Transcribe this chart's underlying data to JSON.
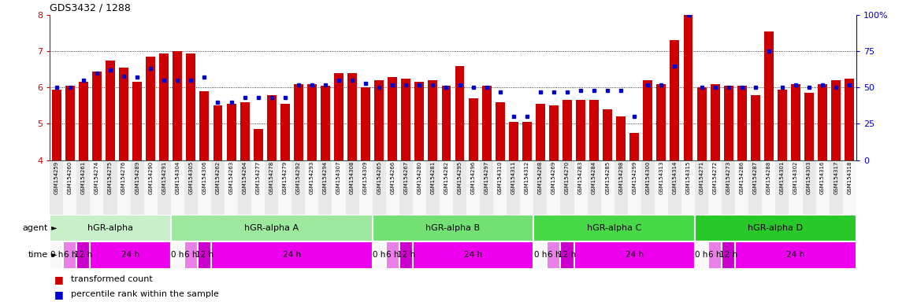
{
  "title": "GDS3432 / 1288",
  "samples": [
    "GSM154259",
    "GSM154260",
    "GSM154261",
    "GSM154274",
    "GSM154275",
    "GSM154276",
    "GSM154289",
    "GSM154290",
    "GSM154291",
    "GSM154304",
    "GSM154305",
    "GSM154306",
    "GSM154262",
    "GSM154263",
    "GSM154264",
    "GSM154277",
    "GSM154278",
    "GSM154279",
    "GSM154292",
    "GSM154293",
    "GSM154294",
    "GSM154307",
    "GSM154308",
    "GSM154309",
    "GSM154265",
    "GSM154266",
    "GSM154267",
    "GSM154280",
    "GSM154281",
    "GSM154282",
    "GSM154295",
    "GSM154296",
    "GSM154297",
    "GSM154310",
    "GSM154311",
    "GSM154312",
    "GSM154268",
    "GSM154269",
    "GSM154270",
    "GSM154283",
    "GSM154284",
    "GSM154285",
    "GSM154298",
    "GSM154299",
    "GSM154300",
    "GSM154313",
    "GSM154314",
    "GSM154315",
    "GSM154271",
    "GSM154272",
    "GSM154273",
    "GSM154286",
    "GSM154287",
    "GSM154288",
    "GSM154301",
    "GSM154302",
    "GSM154303",
    "GSM154316",
    "GSM154317",
    "GSM154318"
  ],
  "bar_values": [
    5.95,
    6.05,
    6.15,
    6.45,
    6.75,
    6.55,
    6.15,
    6.85,
    6.95,
    7.0,
    6.95,
    5.9,
    5.5,
    5.55,
    5.6,
    4.85,
    5.8,
    5.55,
    6.1,
    6.1,
    6.05,
    6.4,
    6.4,
    6.0,
    6.2,
    6.3,
    6.25,
    6.15,
    6.2,
    6.05,
    6.6,
    5.7,
    6.05,
    5.6,
    5.05,
    5.05,
    5.55,
    5.5,
    5.65,
    5.65,
    5.65,
    5.4,
    5.2,
    4.75,
    6.2,
    6.1,
    7.3,
    8.0,
    6.0,
    6.1,
    6.05,
    6.05,
    5.8,
    7.55,
    5.95,
    6.1,
    5.85,
    6.1,
    6.2,
    6.25
  ],
  "percentile_values": [
    50,
    50,
    55,
    60,
    62,
    58,
    57,
    63,
    55,
    55,
    55,
    57,
    40,
    40,
    43,
    43,
    43,
    43,
    52,
    52,
    52,
    55,
    55,
    53,
    50,
    52,
    52,
    52,
    52,
    50,
    52,
    50,
    50,
    47,
    30,
    30,
    47,
    47,
    47,
    48,
    48,
    48,
    48,
    30,
    52,
    52,
    65,
    100,
    50,
    50,
    50,
    50,
    50,
    75,
    50,
    52,
    50,
    52,
    50,
    52
  ],
  "agents": [
    "hGR-alpha",
    "hGR-alpha A",
    "hGR-alpha B",
    "hGR-alpha C",
    "hGR-alpha D"
  ],
  "agent_starts": [
    0,
    9,
    24,
    36,
    48
  ],
  "agent_ends": [
    9,
    24,
    36,
    48,
    60
  ],
  "agent_colors": [
    "#d8f5d8",
    "#c0f0c0",
    "#a8eba8",
    "#84e084",
    "#5cd85c"
  ],
  "time_structure": [
    [
      [
        0,
        3,
        "#ffffff"
      ],
      [
        3,
        9,
        "#e600e6"
      ]
    ],
    [
      [
        9,
        12,
        "#ffffff"
      ],
      [
        12,
        24,
        "#e600e6"
      ]
    ],
    [
      [
        24,
        27,
        "#ffffff"
      ],
      [
        27,
        36,
        "#e600e6"
      ]
    ],
    [
      [
        36,
        39,
        "#ffffff"
      ],
      [
        39,
        48,
        "#e600e6"
      ]
    ],
    [
      [
        48,
        51,
        "#ffffff"
      ],
      [
        51,
        60,
        "#e600e6"
      ]
    ]
  ],
  "time_sub_labels": [
    [
      0,
      1,
      "0 h"
    ],
    [
      1,
      2,
      "6 h"
    ],
    [
      2,
      3,
      "12 h"
    ],
    [
      3,
      9,
      "24 h"
    ],
    [
      9,
      10,
      "0 h"
    ],
    [
      10,
      11,
      "6 h"
    ],
    [
      11,
      12,
      "12 h"
    ],
    [
      12,
      24,
      "24 h"
    ],
    [
      24,
      25,
      "0 h"
    ],
    [
      25,
      26,
      "6 h"
    ],
    [
      26,
      27,
      "12 h"
    ],
    [
      27,
      36,
      "24 h"
    ],
    [
      36,
      37,
      "0 h"
    ],
    [
      37,
      38,
      "6 h"
    ],
    [
      38,
      39,
      "12 h"
    ],
    [
      39,
      48,
      "24 h"
    ],
    [
      48,
      49,
      "0 h"
    ],
    [
      49,
      50,
      "6 h"
    ],
    [
      50,
      51,
      "12 h"
    ],
    [
      51,
      60,
      "24 h"
    ]
  ],
  "time_sub_colors": [
    "#f8f8f8",
    "#e880e8",
    "#cc00cc",
    "#ee00ee",
    "#f8f8f8",
    "#e880e8",
    "#cc00cc",
    "#ee00ee",
    "#f8f8f8",
    "#e880e8",
    "#cc00cc",
    "#ee00ee",
    "#f8f8f8",
    "#e880e8",
    "#cc00cc",
    "#ee00ee",
    "#f8f8f8",
    "#e880e8",
    "#cc00cc",
    "#ee00ee"
  ],
  "ylim_left": [
    4.0,
    8.0
  ],
  "ylim_right": [
    0,
    100
  ],
  "yticks_left": [
    4,
    5,
    6,
    7,
    8
  ],
  "yticks_right": [
    0,
    25,
    50,
    75,
    100
  ],
  "bar_color": "#cc0000",
  "dot_color": "#0000cc",
  "ylabel_left_color": "#cc0000",
  "ylabel_right_color": "#0000cc"
}
